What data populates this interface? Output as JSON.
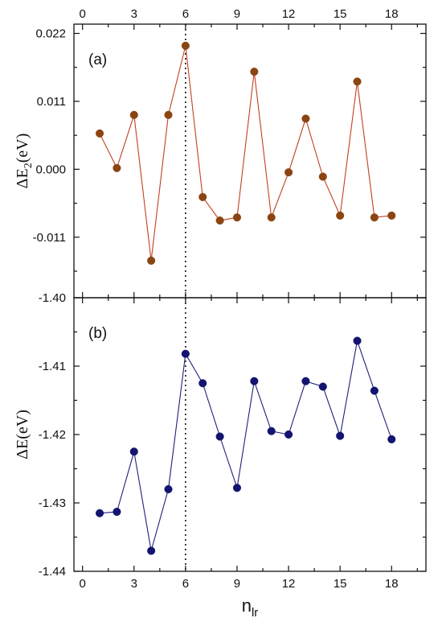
{
  "chart_data": [
    {
      "type": "line",
      "panel_label": "(a)",
      "ylabel": "ΔE",
      "ylabel_sub": "2",
      "ylabel_unit": "(eV)",
      "xlabel": "n",
      "xlabel_sub": "lr",
      "x_ticks": [
        "0",
        "3",
        "6",
        "9",
        "12",
        "15",
        "18"
      ],
      "y_ticks": [
        "0.022",
        "0.011",
        "0.000",
        "-0.011"
      ],
      "xlim": [
        -0.5,
        20.0
      ],
      "ylim": [
        -0.0208,
        0.0235
      ],
      "color": "#c04020",
      "marker_color": "#8b4513",
      "reference_line_x": 6,
      "points": [
        {
          "x": 1,
          "y": 0.0058
        },
        {
          "x": 2,
          "y": 0.0002
        },
        {
          "x": 3,
          "y": 0.0088
        },
        {
          "x": 4,
          "y": -0.0148
        },
        {
          "x": 5,
          "y": 0.0088
        },
        {
          "x": 6,
          "y": 0.02
        },
        {
          "x": 7,
          "y": -0.0045
        },
        {
          "x": 8,
          "y": -0.0083
        },
        {
          "x": 9,
          "y": -0.0078
        },
        {
          "x": 10,
          "y": 0.0158
        },
        {
          "x": 11,
          "y": -0.0078
        },
        {
          "x": 12,
          "y": -0.0005
        },
        {
          "x": 13,
          "y": 0.0082
        },
        {
          "x": 14,
          "y": -0.0012
        },
        {
          "x": 15,
          "y": -0.0075
        },
        {
          "x": 16,
          "y": 0.0142
        },
        {
          "x": 17,
          "y": -0.0078
        },
        {
          "x": 18,
          "y": -0.0075
        }
      ]
    },
    {
      "type": "line",
      "panel_label": "(b)",
      "ylabel": "ΔE",
      "ylabel_sub": "",
      "ylabel_unit": "(eV)",
      "xlabel": "n",
      "xlabel_sub": "lr",
      "x_ticks": [
        "0",
        "3",
        "6",
        "9",
        "12",
        "15",
        "18"
      ],
      "y_ticks": [
        "-1.40",
        "-1.41",
        "-1.42",
        "-1.43",
        "-1.44"
      ],
      "xlim": [
        -0.5,
        20.0
      ],
      "ylim": [
        -1.44,
        -1.4
      ],
      "color": "#20207a",
      "marker_color": "#141470",
      "reference_line_x": 6,
      "points": [
        {
          "x": 1,
          "y": -1.4315
        },
        {
          "x": 2,
          "y": -1.4313
        },
        {
          "x": 3,
          "y": -1.4225
        },
        {
          "x": 4,
          "y": -1.437
        },
        {
          "x": 5,
          "y": -1.428
        },
        {
          "x": 6,
          "y": -1.4082
        },
        {
          "x": 7,
          "y": -1.4125
        },
        {
          "x": 8,
          "y": -1.4203
        },
        {
          "x": 9,
          "y": -1.4278
        },
        {
          "x": 10,
          "y": -1.4122
        },
        {
          "x": 11,
          "y": -1.4195
        },
        {
          "x": 12,
          "y": -1.42
        },
        {
          "x": 13,
          "y": -1.4122
        },
        {
          "x": 14,
          "y": -1.413
        },
        {
          "x": 15,
          "y": -1.4202
        },
        {
          "x": 16,
          "y": -1.4063
        },
        {
          "x": 17,
          "y": -1.4136
        },
        {
          "x": 18,
          "y": -1.4207
        }
      ]
    }
  ]
}
